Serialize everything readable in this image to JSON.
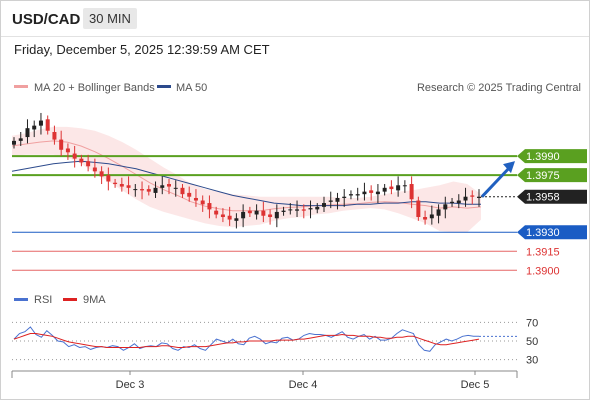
{
  "header": {
    "symbol": "USD/CAD",
    "timeframe": "30 MIN",
    "datetime": "Friday, December 5, 2025 12:39:59 AM CET"
  },
  "legend": {
    "ma20_label": "MA 20 + Bollinger Bands",
    "ma50_label": "MA 50",
    "copyright": "Research © 2025 Trading Central",
    "rsi_label": "RSI",
    "rsi_ma_label": "9MA"
  },
  "colors": {
    "bullish_candle": "#222222",
    "bearish_candle": "#dd3333",
    "ma20": "#f0a0a0",
    "bollinger_fill": "#fce4e4",
    "ma50": "#2c4a8c",
    "resistance": "#5aa020",
    "support": "#1a5cc4",
    "lower_target": "#dd3333",
    "last_price": "#222222",
    "rsi": "#4a72d0",
    "rsi_ma": "#dd2222",
    "arrow": "#2060c0"
  },
  "chart_data": [
    {
      "type": "candlestick",
      "title": "USD/CAD",
      "timeframe": "30 MIN",
      "x_ticks": [
        "Dec 3",
        "Dec 4",
        "Dec 5"
      ],
      "ylim": [
        1.389,
        1.4035
      ],
      "last_price": 1.3958,
      "levels": [
        {
          "label": "1.3990",
          "value": 1.399,
          "kind": "resistance",
          "colorKey": "resistance"
        },
        {
          "label": "1.3975",
          "value": 1.3975,
          "kind": "resistance",
          "colorKey": "resistance"
        },
        {
          "label": "1.3930",
          "value": 1.393,
          "kind": "support",
          "colorKey": "support"
        },
        {
          "label": "1.3915",
          "value": 1.3915,
          "kind": "target",
          "colorKey": "lower_target"
        },
        {
          "label": "1.3900",
          "value": 1.39,
          "kind": "target",
          "colorKey": "lower_target"
        }
      ],
      "projection_target": 1.399,
      "close_path": [
        1.4002,
        1.4004,
        1.4012,
        1.4014,
        1.4018,
        1.401,
        1.4003,
        1.3995,
        1.3993,
        1.3988,
        1.3985,
        1.3982,
        1.3978,
        1.3974,
        1.397,
        1.3968,
        1.3966,
        1.3965,
        1.3964,
        1.3963,
        1.3962,
        1.3965,
        1.3967,
        1.3966,
        1.3965,
        1.396,
        1.3958,
        1.3955,
        1.3952,
        1.3948,
        1.3944,
        1.3942,
        1.394,
        1.3941,
        1.3946,
        1.3945,
        1.3947,
        1.3943,
        1.3942,
        1.3946,
        1.3947,
        1.3948,
        1.3948,
        1.3947,
        1.3949,
        1.395,
        1.3953,
        1.3955,
        1.3957,
        1.3958,
        1.396,
        1.396,
        1.3962,
        1.3961,
        1.3962,
        1.3965,
        1.3964,
        1.3967,
        1.3967,
        1.3956,
        1.3942,
        1.394,
        1.3944,
        1.3948,
        1.3952,
        1.3954,
        1.3955,
        1.3958,
        1.3958,
        1.3958
      ],
      "ma20_band": {
        "upper": [
          1.4006,
          1.4008,
          1.4011,
          1.4013,
          1.4013,
          1.4012,
          1.401,
          1.4006,
          1.4001,
          1.3995,
          1.3988,
          1.3981,
          1.3975,
          1.3968,
          1.3964,
          1.3962,
          1.396,
          1.3959,
          1.3958,
          1.3958,
          1.3958,
          1.3958,
          1.3958,
          1.3958,
          1.3957,
          1.3957,
          1.3958,
          1.396,
          1.3962,
          1.3963,
          1.3965,
          1.3967,
          1.397,
          1.3968,
          1.396
        ],
        "lower": [
          1.399,
          1.3991,
          1.3991,
          1.3991,
          1.3989,
          1.3984,
          1.3977,
          1.397,
          1.3963,
          1.3956,
          1.395,
          1.3946,
          1.3943,
          1.394,
          1.3937,
          1.3935,
          1.3934,
          1.3935,
          1.3936,
          1.3939,
          1.3941,
          1.3942,
          1.3944,
          1.3945,
          1.3947,
          1.3948,
          1.3949,
          1.3948,
          1.3945,
          1.3941,
          1.3937,
          1.3931,
          1.393,
          1.393,
          1.394
        ]
      },
      "ma50": [
        1.3978,
        1.398,
        1.3982,
        1.3984,
        1.3985,
        1.3986,
        1.3985,
        1.3984,
        1.3982,
        1.398,
        1.3977,
        1.3974,
        1.3971,
        1.3968,
        1.3965,
        1.3962,
        1.3959,
        1.3957,
        1.3955,
        1.3953,
        1.3952,
        1.3951,
        1.3951,
        1.3951,
        1.3951,
        1.3952,
        1.3952,
        1.3953,
        1.3953,
        1.3954,
        1.3954,
        1.3953,
        1.3953,
        1.3952,
        1.3952
      ]
    },
    {
      "type": "line",
      "title": "RSI",
      "ylim": [
        20,
        80
      ],
      "y_ticks": [
        70,
        50,
        30
      ],
      "series": [
        {
          "name": "RSI",
          "colorKey": "rsi",
          "values": [
            52,
            58,
            60,
            65,
            57,
            54,
            61,
            56,
            50,
            49,
            44,
            46,
            43,
            44,
            41,
            43,
            44,
            43,
            45,
            44,
            40,
            43,
            47,
            42,
            44,
            45,
            44,
            48,
            47,
            42,
            40,
            44,
            43,
            46,
            42,
            40,
            46,
            52,
            50,
            48,
            52,
            47,
            46,
            53,
            55,
            52,
            47,
            49,
            48,
            53,
            54,
            51,
            52,
            56,
            58,
            57,
            57,
            56,
            54,
            57,
            60,
            54,
            52,
            55,
            57,
            52,
            55,
            51,
            51,
            53,
            58,
            62,
            60,
            58,
            46,
            40,
            39,
            46,
            49,
            52,
            50,
            52,
            55,
            56,
            55,
            55
          ]
        },
        {
          "name": "9MA",
          "colorKey": "rsi_ma",
          "values": [
            52,
            54,
            56,
            58,
            58,
            57,
            56,
            55,
            53,
            51,
            49,
            48,
            47,
            46,
            45,
            44,
            44,
            43,
            43,
            43,
            43,
            43,
            43,
            43,
            44,
            44,
            44,
            45,
            45,
            44,
            43,
            43,
            44,
            44,
            44,
            44,
            45,
            46,
            47,
            48,
            48,
            49,
            49,
            50,
            50,
            50,
            50,
            50,
            51,
            51,
            51,
            51,
            52,
            52,
            53,
            54,
            55,
            56,
            56,
            56,
            57,
            56,
            56,
            55,
            55,
            55,
            54,
            54,
            53,
            53,
            54,
            54,
            55,
            55,
            53,
            51,
            49,
            47,
            46,
            46,
            47,
            48,
            49,
            50,
            51,
            52
          ]
        }
      ]
    }
  ]
}
